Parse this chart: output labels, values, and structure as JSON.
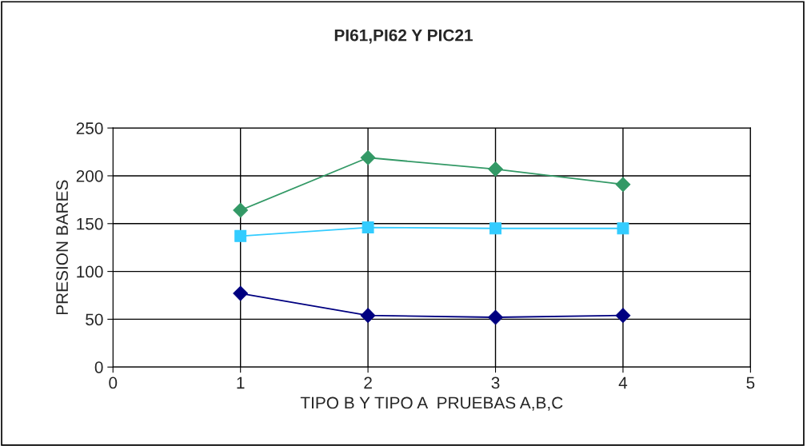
{
  "chart_data": {
    "type": "line",
    "title": "PI61,PI62 Y PIC21",
    "xlabel": "TIPO B Y TIPO A  PRUEBAS A,B,C",
    "ylabel": "PRESION BARES",
    "x": [
      1,
      2,
      3,
      4
    ],
    "series": [
      {
        "color": "#339966",
        "marker": "diamond",
        "values": [
          164,
          219,
          207,
          191
        ]
      },
      {
        "color": "#33ccff",
        "marker": "square",
        "values": [
          137,
          146,
          145,
          145
        ]
      },
      {
        "color": "#000080",
        "marker": "diamond",
        "values": [
          77,
          54,
          52,
          54
        ]
      }
    ],
    "xlim": [
      0,
      5
    ],
    "xticks": [
      0,
      1,
      2,
      3,
      4,
      5
    ],
    "ylim": [
      0,
      250
    ],
    "yticks": [
      0,
      50,
      100,
      150,
      200,
      250
    ],
    "grid": true,
    "legend": false,
    "line_style": "solid"
  }
}
